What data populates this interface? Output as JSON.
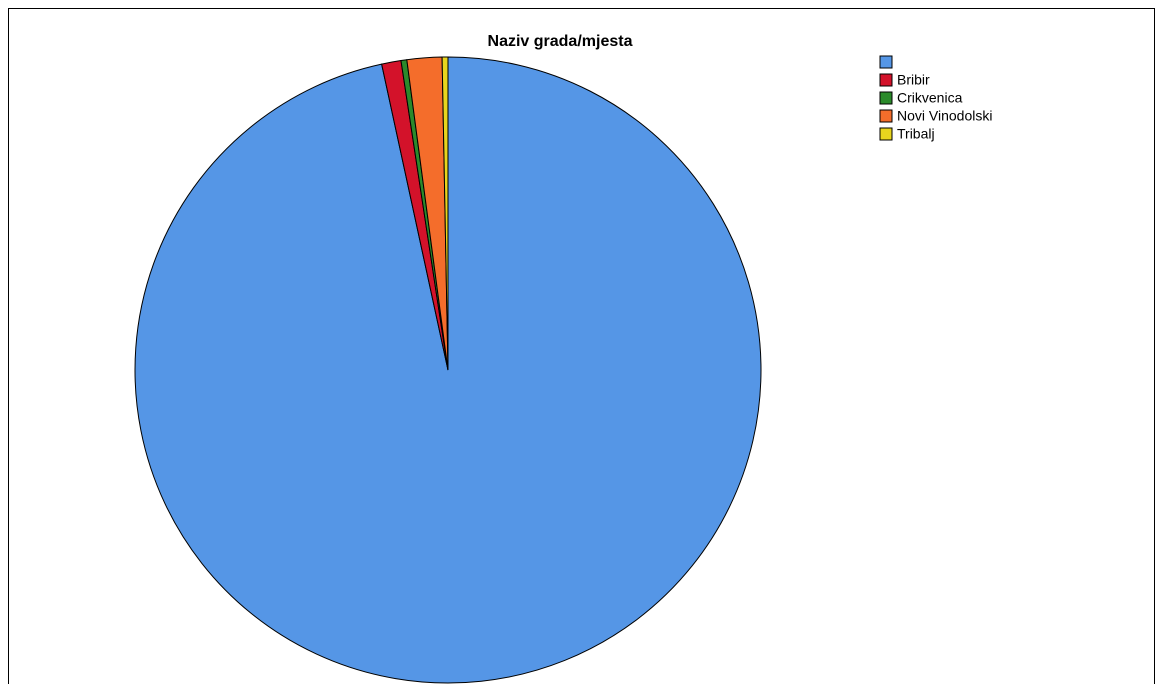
{
  "chart_data": {
    "type": "pie",
    "title": "Naziv grada/mjesta",
    "categories": [
      null,
      "Bribir",
      "Crikvenica",
      "Novi Vinodolski",
      "Tribalj"
    ],
    "values": [
      96.6,
      1.0,
      0.3,
      1.8,
      0.3
    ],
    "colors": [
      "#5596e6",
      "#d3122a",
      "#2b8a2b",
      "#f46d2b",
      "#e8d51e"
    ],
    "legend": "top-right"
  }
}
